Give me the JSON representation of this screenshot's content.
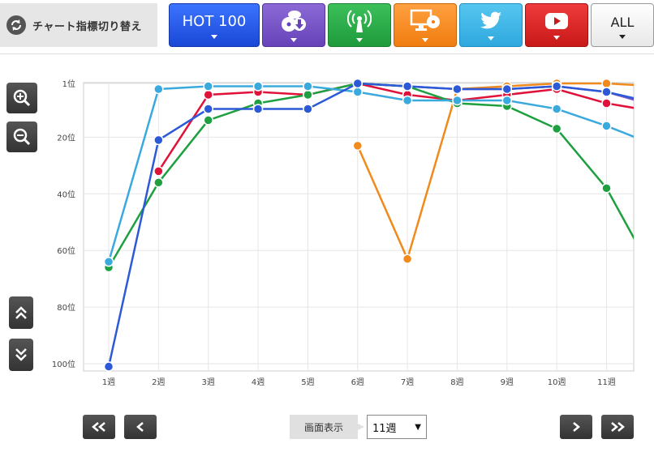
{
  "switcher": {
    "label": "チャート指標切り替え",
    "icon": "refresh-icon"
  },
  "tabs": [
    {
      "id": "hot100",
      "label": "HOT 100",
      "color": "#2350e6"
    },
    {
      "id": "sales",
      "icon": "cd-download-icon",
      "color": "#7150c4"
    },
    {
      "id": "radio",
      "icon": "antenna-icon",
      "color": "#27a846"
    },
    {
      "id": "lookup",
      "icon": "pc-disc-icon",
      "color": "#f58b20"
    },
    {
      "id": "twitter",
      "icon": "twitter-bird-icon",
      "color": "#3db3e6"
    },
    {
      "id": "youtube",
      "icon": "youtube-play-icon",
      "color": "#d42020"
    },
    {
      "id": "all",
      "label": "ALL",
      "color": "#f2f2f2"
    }
  ],
  "side_controls": [
    "zoom-in-icon",
    "zoom-out-icon",
    "scroll-up-icon",
    "scroll-down-icon"
  ],
  "footer": {
    "display_label": "画面表示",
    "select_value": "11週",
    "select_arrow": "▼",
    "nav_icons": [
      "first-page-icon",
      "prev-page-icon",
      "next-page-icon",
      "last-page-icon"
    ]
  },
  "chart_data": {
    "type": "line",
    "y_axis": {
      "reversed": true,
      "ticks": [
        "1位",
        "20位",
        "40位",
        "60位",
        "80位",
        "100位"
      ],
      "tick_values": [
        1,
        20,
        40,
        60,
        80,
        100
      ],
      "range": [
        1,
        100
      ]
    },
    "categories": [
      "1週",
      "2週",
      "3週",
      "4週",
      "5週",
      "6週",
      "7週",
      "8週",
      "9週",
      "10週",
      "11週"
    ],
    "grid": true,
    "series": [
      {
        "color": "#f08a1c",
        "values": [
          null,
          null,
          null,
          null,
          null,
          23,
          63,
          3,
          2,
          1,
          1
        ],
        "after_last": 2
      },
      {
        "color": "#7b52c6",
        "values": [
          null,
          null,
          null,
          null,
          null,
          1,
          2,
          3,
          3,
          2,
          4
        ],
        "after_last": 9
      },
      {
        "color": "#e0123a",
        "values": [
          null,
          32,
          5,
          4,
          5,
          1,
          5,
          7,
          5,
          3,
          8
        ],
        "after_last": 11
      },
      {
        "color": "#1ea040",
        "values": [
          66,
          36,
          14,
          8,
          5,
          1,
          2,
          8,
          9,
          17,
          38
        ],
        "after_last": 70
      },
      {
        "color": "#3aaade",
        "values": [
          64,
          3,
          2,
          2,
          2,
          4,
          7,
          7,
          7,
          10,
          16
        ],
        "after_last": 23
      },
      {
        "color": "#2c5ad6",
        "values": [
          101,
          21,
          10,
          10,
          10,
          1,
          2,
          3,
          3,
          2,
          4
        ],
        "after_last": 8
      }
    ]
  }
}
